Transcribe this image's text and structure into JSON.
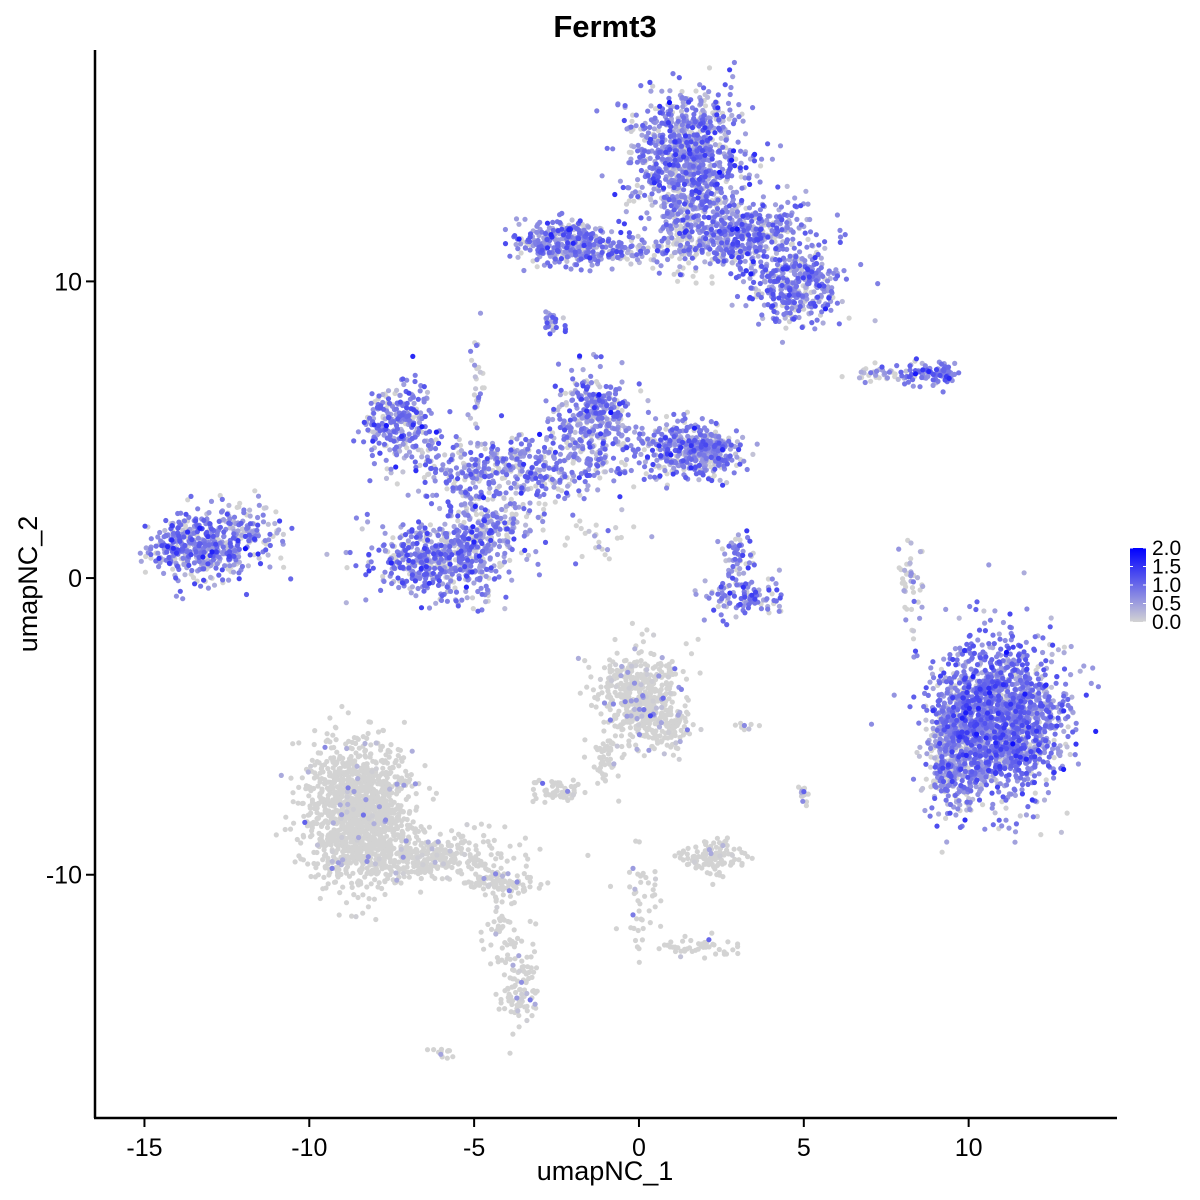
{
  "chart_data": {
    "type": "scatter",
    "title": "Fermt3",
    "xlabel": "umapNC_1",
    "ylabel": "umapNC_2",
    "xlim": [
      -16.5,
      14.5
    ],
    "ylim": [
      -18.2,
      17.8
    ],
    "xticks": [
      -15,
      -10,
      -5,
      0,
      5,
      10
    ],
    "xtick_labels": [
      "-15",
      "-10",
      "-5",
      "0",
      "5",
      "10"
    ],
    "yticks": [
      -10,
      0,
      10
    ],
    "ytick_labels": [
      "-10",
      "0",
      "10"
    ],
    "grid": false,
    "color_scale": {
      "low": "#D3D3D3",
      "high": "#0000FF",
      "min": 0.0,
      "max": 2.0
    },
    "legend": {
      "placement": "right",
      "breaks": [
        2.0,
        1.5,
        1.0,
        0.5,
        0.0
      ],
      "labels": [
        "2.0",
        "1.5",
        "1.0",
        "0.5",
        "0.0"
      ]
    },
    "clusters": [
      {
        "cx": 1.5,
        "cy": 14.2,
        "sx": 0.9,
        "sy": 1.1,
        "n": 900,
        "expr": 0.95
      },
      {
        "cx": 3.2,
        "cy": 11.6,
        "sx": 1.0,
        "sy": 0.6,
        "n": 500,
        "expr": 1.0
      },
      {
        "cx": 4.8,
        "cy": 9.8,
        "sx": 0.7,
        "sy": 0.6,
        "n": 350,
        "expr": 1.0
      },
      {
        "cx": -2.3,
        "cy": 11.3,
        "sx": 0.8,
        "sy": 0.4,
        "n": 300,
        "expr": 1.0
      },
      {
        "cx": -0.3,
        "cy": 11.0,
        "sx": 1.3,
        "sy": 0.18,
        "n": 120,
        "expr": 0.8
      },
      {
        "cx": 1.4,
        "cy": 12.2,
        "sx": 0.4,
        "sy": 1.0,
        "n": 160,
        "expr": 0.7
      },
      {
        "cx": -2.6,
        "cy": 8.6,
        "sx": 0.15,
        "sy": 0.2,
        "n": 25,
        "expr": 1.0
      },
      {
        "cx": 8.9,
        "cy": 6.9,
        "sx": 0.45,
        "sy": 0.2,
        "n": 90,
        "expr": 1.1
      },
      {
        "cx": 7.4,
        "cy": 6.9,
        "sx": 0.6,
        "sy": 0.15,
        "n": 40,
        "expr": 0.6
      },
      {
        "cx": -7.3,
        "cy": 5.3,
        "sx": 0.55,
        "sy": 0.6,
        "n": 250,
        "expr": 1.0
      },
      {
        "cx": -1.4,
        "cy": 5.3,
        "sx": 0.6,
        "sy": 0.8,
        "n": 350,
        "expr": 1.0
      },
      {
        "cx": 1.2,
        "cy": 4.4,
        "sx": 0.8,
        "sy": 0.5,
        "n": 300,
        "expr": 1.0
      },
      {
        "cx": 2.2,
        "cy": 4.2,
        "sx": 0.45,
        "sy": 0.4,
        "n": 160,
        "expr": 1.0
      },
      {
        "cx": -4.0,
        "cy": 3.6,
        "sx": 1.6,
        "sy": 0.6,
        "n": 450,
        "expr": 0.85
      },
      {
        "cx": -6.3,
        "cy": 0.6,
        "sx": 0.9,
        "sy": 0.6,
        "n": 450,
        "expr": 1.0
      },
      {
        "cx": -4.7,
        "cy": 1.4,
        "sx": 0.7,
        "sy": 0.9,
        "n": 300,
        "expr": 0.9
      },
      {
        "cx": -4.9,
        "cy": 6.6,
        "sx": 0.12,
        "sy": 0.8,
        "n": 30,
        "expr": 0.6
      },
      {
        "cx": -1.4,
        "cy": 1.5,
        "sx": 0.7,
        "sy": 0.4,
        "n": 30,
        "expr": 0.5
      },
      {
        "cx": -13.3,
        "cy": 1.0,
        "sx": 0.8,
        "sy": 0.6,
        "n": 450,
        "expr": 1.0
      },
      {
        "cx": -11.8,
        "cy": 1.6,
        "sx": 0.5,
        "sy": 0.5,
        "n": 90,
        "expr": 0.8
      },
      {
        "cx": 3.2,
        "cy": -0.6,
        "sx": 0.6,
        "sy": 0.35,
        "n": 110,
        "expr": 1.0
      },
      {
        "cx": 3.0,
        "cy": 0.8,
        "sx": 0.25,
        "sy": 0.5,
        "n": 50,
        "expr": 0.9
      },
      {
        "cx": 8.2,
        "cy": -0.2,
        "sx": 0.2,
        "sy": 0.8,
        "n": 45,
        "expr": 0.5
      },
      {
        "cx": 10.9,
        "cy": -4.8,
        "sx": 1.0,
        "sy": 1.3,
        "n": 1700,
        "expr": 1.05
      },
      {
        "cx": 9.5,
        "cy": -5.7,
        "sx": 0.4,
        "sy": 1.1,
        "n": 350,
        "expr": 0.85
      },
      {
        "cx": -8.5,
        "cy": -7.9,
        "sx": 0.8,
        "sy": 1.2,
        "n": 1300,
        "expr": 0.03
      },
      {
        "cx": -6.5,
        "cy": -9.4,
        "sx": 1.2,
        "sy": 0.4,
        "n": 350,
        "expr": 0.04
      },
      {
        "cx": -4.2,
        "cy": -10.3,
        "sx": 0.5,
        "sy": 0.2,
        "n": 100,
        "expr": 0.03
      },
      {
        "cx": -3.6,
        "cy": -13.8,
        "sx": 0.35,
        "sy": 0.8,
        "n": 100,
        "expr": 0.08
      },
      {
        "cx": -4.2,
        "cy": -11.8,
        "sx": 0.3,
        "sy": 0.6,
        "n": 40,
        "expr": 0.05
      },
      {
        "cx": -5.9,
        "cy": -16.0,
        "sx": 0.2,
        "sy": 0.1,
        "n": 12,
        "expr": 0.0
      },
      {
        "cx": 0.0,
        "cy": -4.0,
        "sx": 0.6,
        "sy": 0.8,
        "n": 450,
        "expr": 0.15
      },
      {
        "cx": 0.9,
        "cy": -5.0,
        "sx": 0.4,
        "sy": 0.4,
        "n": 80,
        "expr": 0.12
      },
      {
        "cx": -1.0,
        "cy": -6.0,
        "sx": 0.3,
        "sy": 0.5,
        "n": 50,
        "expr": 0.05
      },
      {
        "cx": -2.5,
        "cy": -7.2,
        "sx": 0.4,
        "sy": 0.2,
        "n": 50,
        "expr": 0.1
      },
      {
        "cx": 2.2,
        "cy": -9.4,
        "sx": 0.5,
        "sy": 0.3,
        "n": 120,
        "expr": 0.08
      },
      {
        "cx": 0.0,
        "cy": -10.8,
        "sx": 0.3,
        "sy": 0.9,
        "n": 45,
        "expr": 0.08
      },
      {
        "cx": 1.9,
        "cy": -12.4,
        "sx": 0.6,
        "sy": 0.2,
        "n": 45,
        "expr": 0.06
      },
      {
        "cx": 5.0,
        "cy": -7.3,
        "sx": 0.1,
        "sy": 0.2,
        "n": 15,
        "expr": 0.2
      },
      {
        "cx": 3.2,
        "cy": -5.0,
        "sx": 0.2,
        "sy": 0.08,
        "n": 8,
        "expr": 0.2
      }
    ]
  }
}
